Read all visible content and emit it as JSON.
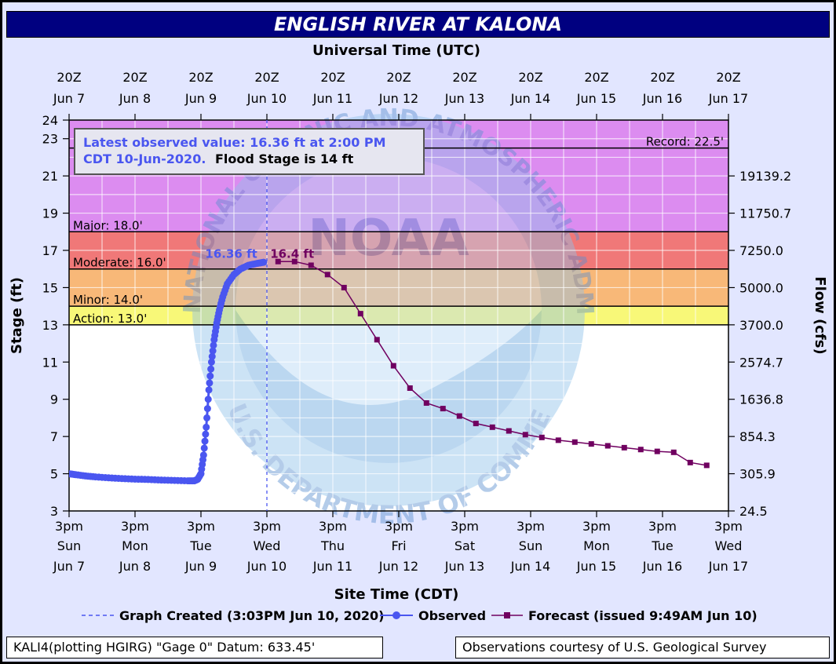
{
  "title": "ENGLISH RIVER AT KALONA",
  "top_axis_title": "Universal Time (UTC)",
  "bottom_axis_title": "Site Time (CDT)",
  "left_axis_title": "Stage (ft)",
  "right_axis_title": "Flow (cfs)",
  "top_ticks": [
    {
      "l1": "20Z",
      "l2": "Jun 7"
    },
    {
      "l1": "20Z",
      "l2": "Jun 8"
    },
    {
      "l1": "20Z",
      "l2": "Jun 9"
    },
    {
      "l1": "20Z",
      "l2": "Jun 10"
    },
    {
      "l1": "20Z",
      "l2": "Jun 11"
    },
    {
      "l1": "20Z",
      "l2": "Jun 12"
    },
    {
      "l1": "20Z",
      "l2": "Jun 13"
    },
    {
      "l1": "20Z",
      "l2": "Jun 14"
    },
    {
      "l1": "20Z",
      "l2": "Jun 15"
    },
    {
      "l1": "20Z",
      "l2": "Jun 16"
    },
    {
      "l1": "20Z",
      "l2": "Jun 17"
    }
  ],
  "bottom_ticks": [
    {
      "l1": "3pm",
      "l2": "Sun",
      "l3": "Jun 7"
    },
    {
      "l1": "3pm",
      "l2": "Mon",
      "l3": "Jun 8"
    },
    {
      "l1": "3pm",
      "l2": "Tue",
      "l3": "Jun 9"
    },
    {
      "l1": "3pm",
      "l2": "Wed",
      "l3": "Jun 10"
    },
    {
      "l1": "3pm",
      "l2": "Thu",
      "l3": "Jun 11"
    },
    {
      "l1": "3pm",
      "l2": "Fri",
      "l3": "Jun 12"
    },
    {
      "l1": "3pm",
      "l2": "Sat",
      "l3": "Jun 13"
    },
    {
      "l1": "3pm",
      "l2": "Sun",
      "l3": "Jun 14"
    },
    {
      "l1": "3pm",
      "l2": "Mon",
      "l3": "Jun 15"
    },
    {
      "l1": "3pm",
      "l2": "Tue",
      "l3": "Jun 16"
    },
    {
      "l1": "3pm",
      "l2": "Wed",
      "l3": "Jun 17"
    }
  ],
  "latest_box": {
    "line1": "Latest observed value: 16.36 ft at 2:00 PM",
    "line2_blue": "CDT 10-Jun-2020.",
    "line2_black": "Flood Stage is 14 ft"
  },
  "legend": {
    "created": "Graph Created (3:03PM Jun 10, 2020)",
    "observed": "Observed",
    "forecast": "Forecast (issued 9:49AM Jun 10)"
  },
  "footer_left": "KALI4(plotting HGIRG) \"Gage 0\" Datum: 633.45'",
  "footer_right": "Observations courtesy of U.S. Geological Survey",
  "watermark": {
    "center": "NOAA",
    "top_arc": "NATIONAL OCEANIC AND ATMOSPHERIC ADMINISTRATION",
    "bottom_arc": "U.S. DEPARTMENT OF COMMERCE"
  },
  "colors": {
    "title_bg": "#000080",
    "plot_bg": "#e2e6ff",
    "major": "#dc8cf0",
    "moderate": "#f07878",
    "minor": "#f8b878",
    "action": "#f8f878",
    "observed": "#4a56f0",
    "forecast": "#700060",
    "label_blue": "#4a56f0"
  },
  "chart_data": {
    "type": "line",
    "x_unit": "days since 3pm CDT Sun Jun 7",
    "ylim": [
      3,
      24
    ],
    "xlim": [
      0,
      10
    ],
    "left_ticks": [
      3,
      5,
      7,
      9,
      11,
      13,
      15,
      17,
      19,
      21,
      23,
      24
    ],
    "right_ticks": [
      {
        "stage": 3,
        "flow": "24.5"
      },
      {
        "stage": 5,
        "flow": "305.9"
      },
      {
        "stage": 7,
        "flow": "854.3"
      },
      {
        "stage": 9,
        "flow": "1636.8"
      },
      {
        "stage": 11,
        "flow": "2574.7"
      },
      {
        "stage": 13,
        "flow": "3700.0"
      },
      {
        "stage": 15,
        "flow": "5000.0"
      },
      {
        "stage": 17,
        "flow": "7250.0"
      },
      {
        "stage": 19,
        "flow": "11750.7"
      },
      {
        "stage": 21,
        "flow": "19139.2"
      }
    ],
    "flood_categories": [
      {
        "name": "Record",
        "label": "Record: 22.5'",
        "value": 22.5
      },
      {
        "name": "Major",
        "label": "Major: 18.0'",
        "value": 18.0
      },
      {
        "name": "Moderate",
        "label": "Moderate: 16.0'",
        "value": 16.0
      },
      {
        "name": "Minor",
        "label": "Minor: 14.0'",
        "value": 14.0
      },
      {
        "name": "Action",
        "label": "Action: 13.0'",
        "value": 13.0
      }
    ],
    "graph_created_x": 3.0,
    "observed_peak_label": "16.36 ft",
    "forecast_peak_label": "16.4 ft",
    "observed": [
      [
        0.0,
        5.0
      ],
      [
        0.1,
        4.95
      ],
      [
        0.25,
        4.88
      ],
      [
        0.4,
        4.83
      ],
      [
        0.6,
        4.78
      ],
      [
        0.8,
        4.74
      ],
      [
        1.0,
        4.71
      ],
      [
        1.2,
        4.69
      ],
      [
        1.4,
        4.66
      ],
      [
        1.6,
        4.64
      ],
      [
        1.8,
        4.62
      ],
      [
        1.9,
        4.62
      ],
      [
        1.95,
        4.7
      ],
      [
        2.0,
        5.0
      ],
      [
        2.04,
        6.0
      ],
      [
        2.08,
        7.5
      ],
      [
        2.12,
        9.5
      ],
      [
        2.16,
        11.0
      ],
      [
        2.2,
        12.2
      ],
      [
        2.24,
        13.1
      ],
      [
        2.28,
        13.8
      ],
      [
        2.33,
        14.5
      ],
      [
        2.4,
        15.2
      ],
      [
        2.5,
        15.7
      ],
      [
        2.6,
        16.0
      ],
      [
        2.72,
        16.2
      ],
      [
        2.85,
        16.3
      ],
      [
        2.95,
        16.36
      ]
    ],
    "forecast": [
      [
        3.17,
        16.4
      ],
      [
        3.42,
        16.4
      ],
      [
        3.67,
        16.2
      ],
      [
        3.92,
        15.7
      ],
      [
        4.17,
        15.0
      ],
      [
        4.42,
        13.6
      ],
      [
        4.67,
        12.2
      ],
      [
        4.92,
        10.8
      ],
      [
        5.17,
        9.6
      ],
      [
        5.42,
        8.8
      ],
      [
        5.67,
        8.5
      ],
      [
        5.92,
        8.1
      ],
      [
        6.17,
        7.7
      ],
      [
        6.42,
        7.5
      ],
      [
        6.67,
        7.3
      ],
      [
        6.92,
        7.1
      ],
      [
        7.17,
        6.95
      ],
      [
        7.42,
        6.8
      ],
      [
        7.67,
        6.7
      ],
      [
        7.92,
        6.6
      ],
      [
        8.17,
        6.5
      ],
      [
        8.42,
        6.4
      ],
      [
        8.67,
        6.3
      ],
      [
        8.92,
        6.2
      ],
      [
        9.17,
        6.15
      ],
      [
        9.42,
        5.6
      ],
      [
        9.67,
        5.45
      ]
    ]
  }
}
